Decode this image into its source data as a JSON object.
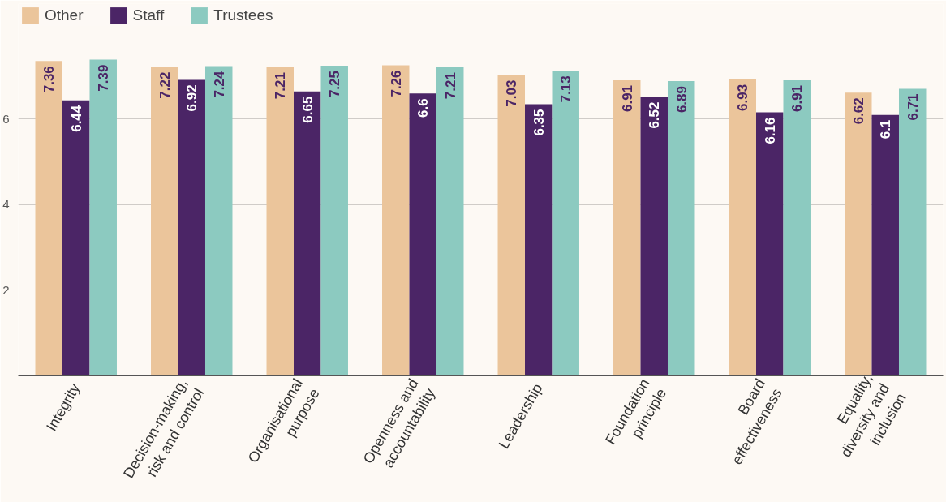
{
  "chart_data": {
    "type": "bar",
    "categories": [
      "Integrity",
      "Decision-making, risk and control",
      "Organisational purpose",
      "Openness and accountability",
      "Leadership",
      "Foundation principle",
      "Board effectiveness",
      "Equality, diversity and inclusion"
    ],
    "series": [
      {
        "name": "Other",
        "color": "#ebc59b",
        "values": [
          7.36,
          7.22,
          7.21,
          7.26,
          7.03,
          6.91,
          6.93,
          6.62
        ]
      },
      {
        "name": "Staff",
        "color": "#4b2566",
        "values": [
          6.44,
          6.92,
          6.65,
          6.6,
          6.35,
          6.52,
          6.16,
          6.1
        ]
      },
      {
        "name": "Trustees",
        "color": "#8ccac0",
        "values": [
          7.39,
          7.24,
          7.25,
          7.21,
          7.13,
          6.89,
          6.91,
          6.71
        ]
      }
    ],
    "ylim": [
      0,
      8.7
    ],
    "yticks": [
      2,
      4,
      6
    ],
    "grid": "y",
    "legend": "top left",
    "data_labels": true
  }
}
